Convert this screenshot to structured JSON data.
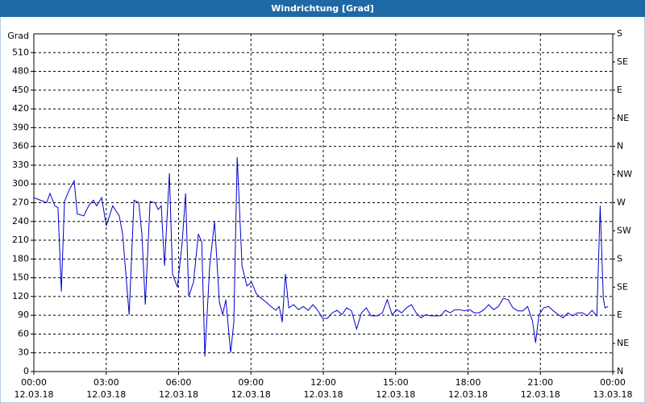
{
  "chart_data": {
    "type": "line",
    "title": "Windrichtung [Grad]",
    "ylabel": "Grad",
    "xlim": [
      0,
      24
    ],
    "xticks": [
      {
        "value": 0,
        "label": "00:00"
      },
      {
        "value": 3,
        "label": "03:00"
      },
      {
        "value": 6,
        "label": "06:00"
      },
      {
        "value": 9,
        "label": "09:00"
      },
      {
        "value": 12,
        "label": "12:00"
      },
      {
        "value": 15,
        "label": "15:00"
      },
      {
        "value": 18,
        "label": "18:00"
      },
      {
        "value": 21,
        "label": "21:00"
      },
      {
        "value": 24,
        "label": "00:00"
      }
    ],
    "xtick_dates": [
      "12.03.18",
      "12.03.18",
      "12.03.18",
      "12.03.18",
      "12.03.18",
      "12.03.18",
      "12.03.18",
      "12.03.18",
      "13.03.18"
    ],
    "ylim": [
      0,
      540
    ],
    "yticks": [
      0,
      30,
      60,
      90,
      120,
      150,
      180,
      210,
      240,
      270,
      300,
      330,
      360,
      390,
      420,
      450,
      480,
      510
    ],
    "y2lim": [
      0,
      540
    ],
    "y2ticks": [
      {
        "value": 0,
        "label": "N"
      },
      {
        "value": 45,
        "label": "NE"
      },
      {
        "value": 90,
        "label": "E"
      },
      {
        "value": 135,
        "label": "SE"
      },
      {
        "value": 180,
        "label": "S"
      },
      {
        "value": 225,
        "label": "SW"
      },
      {
        "value": 270,
        "label": "W"
      },
      {
        "value": 315,
        "label": "NW"
      },
      {
        "value": 360,
        "label": "N"
      },
      {
        "value": 405,
        "label": "NE"
      },
      {
        "value": 450,
        "label": "E"
      },
      {
        "value": 495,
        "label": "SE"
      },
      {
        "value": 540,
        "label": "S"
      }
    ],
    "grid": true,
    "x": [
      0,
      0.27,
      0.53,
      0.67,
      0.87,
      1.0,
      1.14,
      1.27,
      1.47,
      1.67,
      1.8,
      2.07,
      2.27,
      2.47,
      2.6,
      2.81,
      3.0,
      3.27,
      3.54,
      3.68,
      3.95,
      4.15,
      4.35,
      4.48,
      4.62,
      4.82,
      5.02,
      5.15,
      5.28,
      5.42,
      5.62,
      5.75,
      5.95,
      6.15,
      6.29,
      6.42,
      6.62,
      6.82,
      6.96,
      7.09,
      7.29,
      7.49,
      7.69,
      7.83,
      7.96,
      8.16,
      8.29,
      8.43,
      8.63,
      8.83,
      9.03,
      9.23,
      9.43,
      9.63,
      9.83,
      10.03,
      10.17,
      10.3,
      10.43,
      10.57,
      10.77,
      10.97,
      11.17,
      11.37,
      11.57,
      11.77,
      11.97,
      12.17,
      12.37,
      12.57,
      12.77,
      12.97,
      13.17,
      13.38,
      13.58,
      13.78,
      13.98,
      14.25,
      14.45,
      14.65,
      14.85,
      15.05,
      15.25,
      15.45,
      15.65,
      15.85,
      16.05,
      16.25,
      16.45,
      16.66,
      16.86,
      17.06,
      17.26,
      17.46,
      17.66,
      17.86,
      18.06,
      18.26,
      18.46,
      18.66,
      18.86,
      19.06,
      19.26,
      19.46,
      19.66,
      19.86,
      20.07,
      20.27,
      20.47,
      20.67,
      20.8,
      20.94,
      21.14,
      21.34,
      21.54,
      21.74,
      21.94,
      22.14,
      22.34,
      22.54,
      22.74,
      22.94,
      23.14,
      23.34,
      23.48,
      23.61,
      23.68,
      23.81
    ],
    "series": [
      {
        "name": "Windrichtung",
        "color": "#0000cc",
        "values": [
          278,
          274,
          270,
          285,
          265,
          262,
          128,
          272,
          291,
          305,
          252,
          249,
          265,
          274,
          265,
          278,
          233,
          265,
          249,
          220,
          91,
          274,
          270,
          220,
          107,
          272,
          270,
          259,
          265,
          169,
          317,
          156,
          135,
          207,
          285,
          120,
          143,
          220,
          207,
          24,
          169,
          240,
          111,
          91,
          115,
          30,
          79,
          343,
          169,
          137,
          143,
          124,
          117,
          111,
          104,
          98,
          104,
          79,
          156,
          102,
          107,
          99,
          104,
          98,
          107,
          98,
          85,
          85,
          94,
          98,
          91,
          102,
          97,
          68,
          94,
          102,
          89,
          89,
          94,
          115,
          91,
          99,
          94,
          102,
          107,
          94,
          86,
          91,
          89,
          89,
          89,
          98,
          94,
          99,
          99,
          97,
          99,
          94,
          94,
          99,
          107,
          99,
          104,
          117,
          115,
          102,
          97,
          97,
          104,
          81,
          46,
          91,
          102,
          104,
          97,
          91,
          86,
          94,
          89,
          94,
          94,
          89,
          98,
          89,
          265,
          117,
          102,
          104
        ]
      }
    ]
  }
}
